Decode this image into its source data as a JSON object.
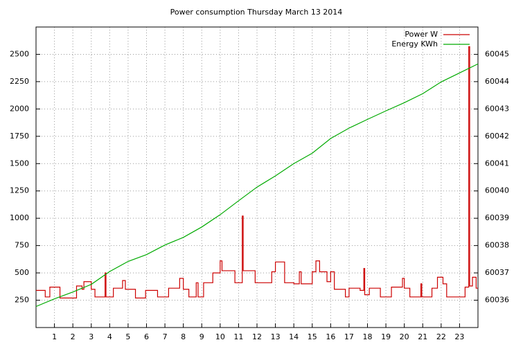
{
  "chart_data": {
    "type": "line",
    "title": "Power consumption Thursday March 13 2014",
    "xlim": [
      0,
      24
    ],
    "xticks": [
      1,
      2,
      3,
      4,
      5,
      6,
      7,
      8,
      9,
      10,
      11,
      12,
      13,
      14,
      15,
      16,
      17,
      18,
      19,
      20,
      21,
      22,
      23
    ],
    "ylim": [
      0,
      2750
    ],
    "yticks": [
      250,
      500,
      750,
      1000,
      1250,
      1500,
      1750,
      2000,
      2250,
      2500
    ],
    "y2lim": [
      60035,
      60046
    ],
    "y2ticks": [
      60036,
      60037,
      60038,
      60039,
      60040,
      60041,
      60042,
      60043,
      60044,
      60045
    ],
    "grid": true,
    "legend": "top-right",
    "series": [
      {
        "name": "Power W",
        "color": "#cc0000",
        "step": true,
        "x": [
          0,
          0.5,
          0.75,
          1.3,
          2.2,
          2.5,
          2.6,
          3.0,
          3.2,
          3.75,
          3.8,
          4.2,
          4.7,
          4.85,
          5.4,
          5.95,
          6.6,
          7.2,
          7.8,
          8.0,
          8.3,
          8.7,
          8.8,
          9.1,
          9.6,
          10.0,
          10.1,
          10.8,
          11.2,
          11.25,
          11.9,
          12.8,
          13.0,
          13.5,
          14.0,
          14.3,
          14.4,
          15.0,
          15.2,
          15.4,
          15.8,
          16.0,
          16.2,
          16.8,
          17.0,
          17.6,
          17.8,
          17.85,
          18.1,
          18.7,
          19.3,
          19.9,
          20.0,
          20.3,
          20.9,
          20.95,
          21.5,
          21.8,
          22.1,
          22.3,
          23.3,
          23.5,
          23.55,
          23.7,
          23.9,
          24
        ],
        "values": [
          340,
          280,
          370,
          270,
          380,
          350,
          420,
          350,
          280,
          500,
          280,
          360,
          430,
          350,
          270,
          340,
          280,
          360,
          450,
          350,
          280,
          410,
          280,
          410,
          500,
          610,
          520,
          410,
          1020,
          520,
          410,
          510,
          600,
          410,
          400,
          510,
          400,
          510,
          610,
          510,
          420,
          510,
          350,
          280,
          360,
          340,
          540,
          300,
          360,
          280,
          370,
          450,
          360,
          280,
          400,
          280,
          360,
          460,
          400,
          280,
          370,
          2570,
          380,
          460,
          360,
          360
        ]
      },
      {
        "name": "Energy KWh",
        "color": "#00aa00",
        "axis": "y2",
        "x": [
          0,
          1,
          2,
          3,
          4,
          5,
          6,
          7,
          8,
          9,
          10,
          11,
          12,
          13,
          14,
          15,
          16,
          17,
          18,
          19,
          20,
          21,
          22,
          23,
          24
        ],
        "values": [
          60035.77,
          60036.05,
          60036.3,
          60036.58,
          60037.05,
          60037.42,
          60037.67,
          60038.02,
          60038.3,
          60038.68,
          60039.13,
          60039.64,
          60040.14,
          60040.55,
          60041.0,
          60041.38,
          60041.92,
          60042.3,
          60042.62,
          60042.93,
          60043.23,
          60043.56,
          60043.99,
          60044.32,
          60044.65
        ]
      }
    ]
  }
}
